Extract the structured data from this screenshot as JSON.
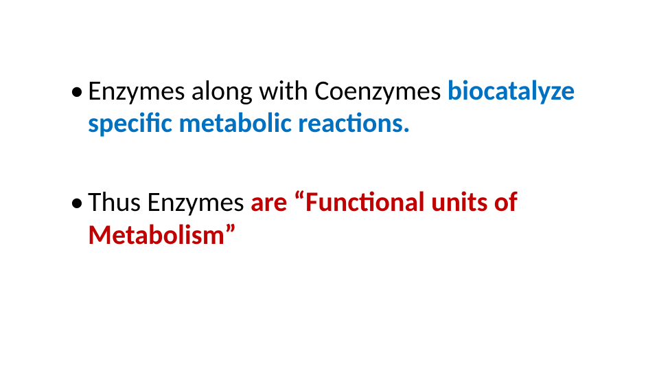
{
  "slide": {
    "background_color": "#ffffff",
    "font_family": "Calibri",
    "bullets": [
      {
        "segments": [
          {
            "text": "Enzymes along with Coenzymes ",
            "color": "#000000",
            "bold": false
          },
          {
            "text": "biocatalyze specific metabolic reactions.",
            "color": "#0070c0",
            "bold": true
          }
        ]
      },
      {
        "segments": [
          {
            "text": "Thus Enzymes ",
            "color": "#000000",
            "bold": false
          },
          {
            "text": "are “Functional units of Metabolism”",
            "color": "#c00000",
            "bold": true
          }
        ]
      }
    ],
    "font_size_pt": 40,
    "bullet_color": "#000000"
  }
}
